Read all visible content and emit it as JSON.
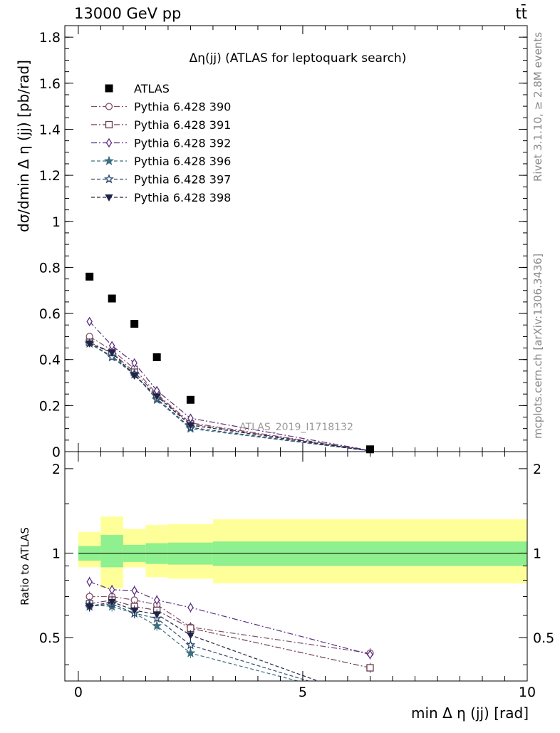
{
  "header": {
    "energy_label": "13000 GeV pp",
    "process_label": "tt̄",
    "rivet_label": "Rivet 3.1.10, ≥ 2.8M events",
    "mcplots_label": "mcplots.cern.ch [arXiv:1306.3436]",
    "analysis_label": "ATLAS_2019_I1718132"
  },
  "chart_data": [
    {
      "type": "scatter",
      "title": "Δη(jj) (ATLAS for leptoquark search)",
      "ylabel": "dσ/dmin Δ η (jj) [pb/rad]",
      "xlim": [
        -0.3,
        10
      ],
      "ylim": [
        0,
        1.85
      ],
      "yticks": [
        "0",
        "0.2",
        "0.4",
        "0.6",
        "0.8",
        "1",
        "1.2",
        "1.4",
        "1.6",
        "1.8"
      ],
      "legend": "top-left",
      "data": {
        "name": "ATLAS",
        "color": "#000000",
        "x": [
          0.25,
          0.75,
          1.25,
          1.75,
          2.5,
          6.5
        ],
        "y": [
          0.76,
          0.665,
          0.555,
          0.41,
          0.225,
          0.01
        ]
      },
      "series": [
        {
          "name": "Pythia 6.428 390",
          "color": "#7f4f6b",
          "marker": "circle-open",
          "dash": "8,3,2,3",
          "y": [
            0.5,
            0.44,
            0.36,
            0.25,
            0.125,
            0.005
          ]
        },
        {
          "name": "Pythia 6.428 391",
          "color": "#6b3a4e",
          "marker": "square-open",
          "dash": "8,3,2,3",
          "y": [
            0.475,
            0.43,
            0.345,
            0.245,
            0.12,
            0.004
          ]
        },
        {
          "name": "Pythia 6.428 392",
          "color": "#5a2d82",
          "marker": "diamond-open",
          "dash": "8,3,2,3",
          "y": [
            0.565,
            0.46,
            0.385,
            0.265,
            0.145,
            0.005
          ]
        },
        {
          "name": "Pythia 6.428 396",
          "color": "#3d6f80",
          "marker": "star-filled",
          "dash": "5,3",
          "y": [
            0.47,
            0.415,
            0.34,
            0.225,
            0.1,
            0.003
          ]
        },
        {
          "name": "Pythia 6.428 397",
          "color": "#2b4a6e",
          "marker": "star-open",
          "dash": "5,3",
          "y": [
            0.47,
            0.41,
            0.335,
            0.23,
            0.105,
            0.003
          ]
        },
        {
          "name": "Pythia 6.428 398",
          "color": "#1f2547",
          "marker": "triangle-down-filled",
          "dash": "5,3",
          "y": [
            0.47,
            0.43,
            0.33,
            0.24,
            0.115,
            0.003
          ]
        }
      ]
    },
    {
      "type": "scatter",
      "ylabel": "Ratio to ATLAS",
      "xlabel": "min Δ η (jj) [rad]",
      "xlim": [
        -0.3,
        10
      ],
      "ylim": [
        0.35,
        2.3
      ],
      "xticks": [
        "0",
        "5",
        "10"
      ],
      "yticks": [
        "0.5",
        "1",
        "2"
      ],
      "bands": {
        "edges": [
          0,
          0.5,
          1,
          1.5,
          2,
          3,
          10
        ],
        "green": [
          [
            0.94,
            1.06
          ],
          [
            0.89,
            1.16
          ],
          [
            0.93,
            1.07
          ],
          [
            0.915,
            1.085
          ],
          [
            0.91,
            1.09
          ],
          [
            0.9,
            1.1
          ],
          [
            0.91,
            1.18
          ]
        ],
        "yellow": [
          [
            0.89,
            1.19
          ],
          [
            0.75,
            1.35
          ],
          [
            0.89,
            1.22
          ],
          [
            0.82,
            1.26
          ],
          [
            0.81,
            1.27
          ],
          [
            0.78,
            1.32
          ],
          [
            0.78,
            1.32
          ]
        ],
        "green_color": "#8ef08e",
        "yellow_color": "#ffff99"
      },
      "series": [
        {
          "name": "Pythia 6.428 390",
          "y": [
            0.7,
            0.7,
            0.68,
            0.655,
            0.545,
            0.44
          ]
        },
        {
          "name": "Pythia 6.428 391",
          "y": [
            0.66,
            0.68,
            0.645,
            0.625,
            0.54,
            0.39
          ]
        },
        {
          "name": "Pythia 6.428 392",
          "y": [
            0.79,
            0.74,
            0.735,
            0.68,
            0.64,
            0.435
          ]
        },
        {
          "name": "Pythia 6.428 396",
          "y": [
            0.655,
            0.645,
            0.61,
            0.55,
            0.44,
            0.3
          ]
        },
        {
          "name": "Pythia 6.428 397",
          "y": [
            0.645,
            0.66,
            0.61,
            0.585,
            0.47,
            0.3
          ]
        },
        {
          "name": "Pythia 6.428 398",
          "y": [
            0.645,
            0.67,
            0.625,
            0.605,
            0.51,
            0.3
          ]
        }
      ]
    }
  ]
}
